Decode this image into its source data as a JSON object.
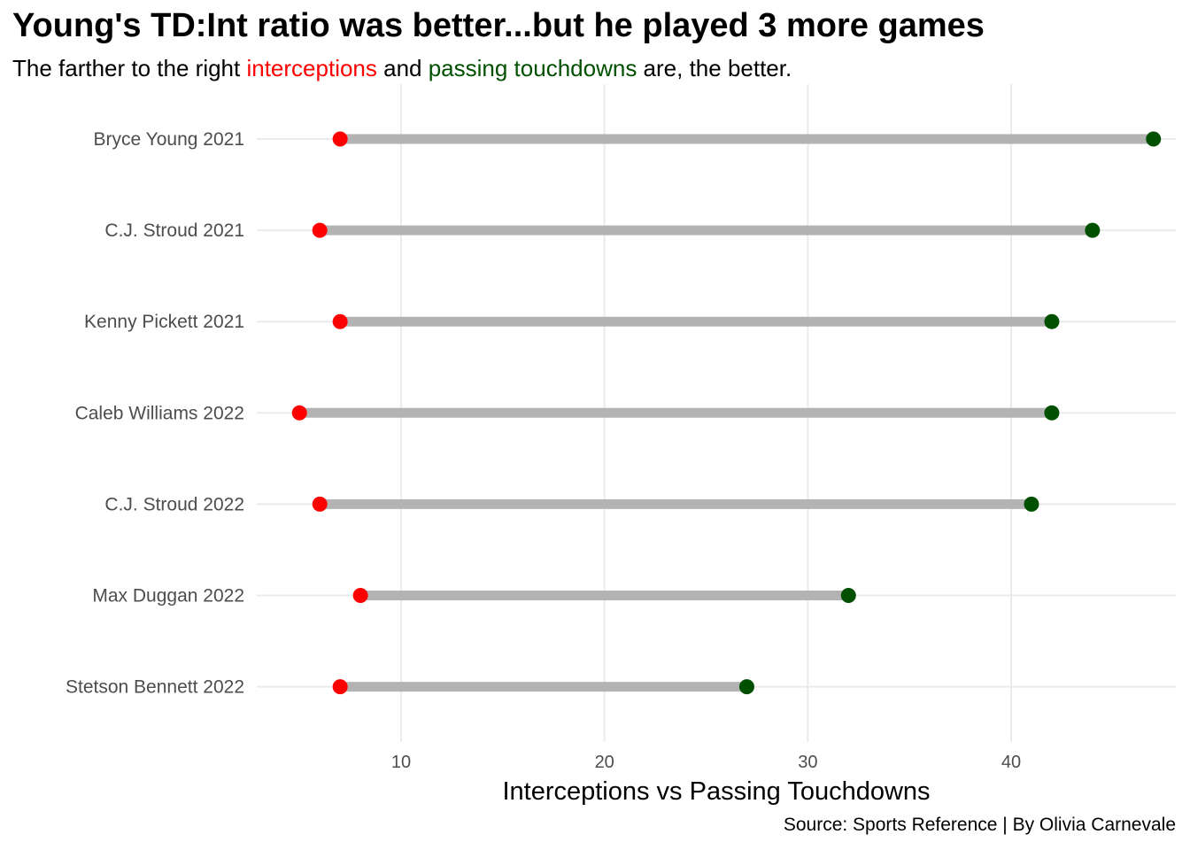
{
  "chart_data": {
    "type": "dumbbell",
    "title": "Young's TD:Int ratio was better...but he played 3 more games",
    "subtitle": {
      "prefix": "The farther to the right ",
      "int_word": "interceptions",
      "middle": " and ",
      "td_word": "passing touchdowns",
      "suffix": " are, the better."
    },
    "xlabel": "Interceptions vs Passing Touchdowns",
    "caption": "Source: Sports Reference | By Olivia Carnevale",
    "xlim": [
      2.9,
      48.1
    ],
    "xticks": [
      10,
      20,
      30,
      40
    ],
    "grid": true,
    "colors": {
      "interceptions": "#ff0000",
      "touchdowns": "#005000",
      "segment": "#b3b3b3",
      "grid": "#ebebeb"
    },
    "players": [
      {
        "name": "Bryce Young 2021",
        "interceptions": 7,
        "touchdowns": 47
      },
      {
        "name": "C.J. Stroud 2021",
        "interceptions": 6,
        "touchdowns": 44
      },
      {
        "name": "Kenny Pickett 2021",
        "interceptions": 7,
        "touchdowns": 42
      },
      {
        "name": "Caleb Williams 2022",
        "interceptions": 5,
        "touchdowns": 42
      },
      {
        "name": "C.J. Stroud 2022",
        "interceptions": 6,
        "touchdowns": 41
      },
      {
        "name": "Max Duggan 2022",
        "interceptions": 8,
        "touchdowns": 32
      },
      {
        "name": "Stetson Bennett 2022",
        "interceptions": 7,
        "touchdowns": 27
      }
    ]
  }
}
